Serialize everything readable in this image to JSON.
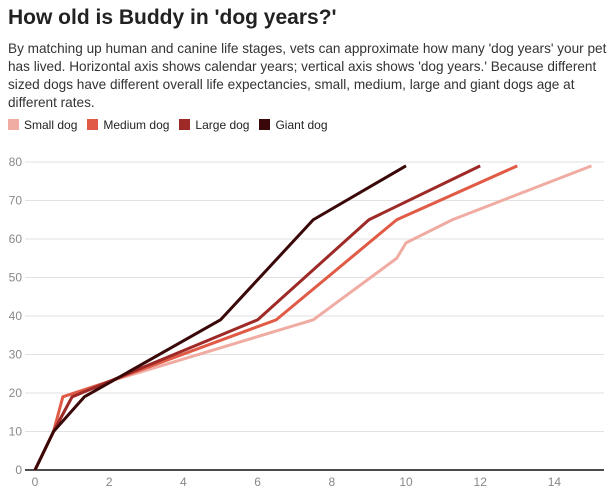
{
  "title": "How old is Buddy in 'dog years?'",
  "subtitle": "By matching up human and canine life stages, vets can approximate how many 'dog years' your pet has lived. Horizontal axis shows calendar years; vertical axis shows 'dog years.' Because different sized dogs have different overall life expectancies, small, medium, large and giant dogs age at different rates.",
  "chart_data": {
    "type": "line",
    "title": "How old is Buddy in 'dog years?'",
    "xlabel": "",
    "ylabel": "",
    "xlim": [
      0,
      15.5
    ],
    "ylim": [
      0,
      80
    ],
    "xticks": [
      0,
      2,
      4,
      6,
      8,
      10,
      12,
      14
    ],
    "yticks": [
      0,
      10,
      20,
      30,
      40,
      50,
      60,
      70,
      80
    ],
    "grid": "horizontal",
    "legend": "top-left",
    "series": [
      {
        "name": "Small dog",
        "color": "#f0aca2",
        "x": [
          0,
          0.5,
          1,
          2,
          7.5,
          9.75,
          10,
          11.25,
          15
        ],
        "y": [
          0,
          10,
          19,
          23,
          39,
          55,
          59,
          65,
          79
        ]
      },
      {
        "name": "Medium dog",
        "color": "#e05a45",
        "x": [
          0,
          0.5,
          0.75,
          2,
          6.5,
          9.75,
          13
        ],
        "y": [
          0,
          10,
          19,
          23,
          39,
          65,
          79
        ]
      },
      {
        "name": "Large dog",
        "color": "#9e2a28",
        "x": [
          0,
          0.5,
          1,
          2,
          6,
          9,
          12
        ],
        "y": [
          0,
          10,
          19,
          23,
          39,
          65,
          79
        ]
      },
      {
        "name": "Giant dog",
        "color": "#3a0808",
        "x": [
          0,
          0.5,
          1.33,
          5,
          7.5,
          10
        ],
        "y": [
          0,
          10,
          19,
          39,
          65,
          79
        ]
      }
    ]
  }
}
